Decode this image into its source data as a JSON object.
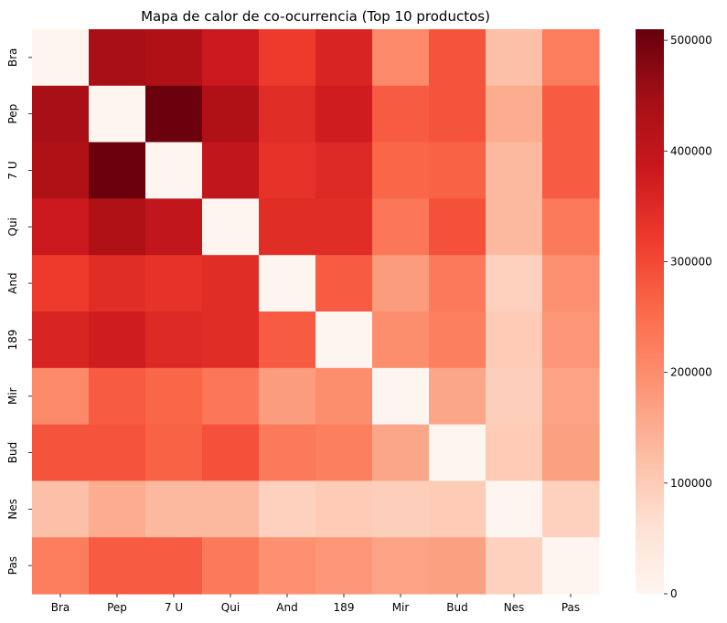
{
  "chart_data": {
    "type": "heatmap",
    "title": "Mapa de calor de co-ocurrencia (Top 10 productos)",
    "xlabel": "",
    "ylabel": "",
    "x_categories": [
      "Bra",
      "Pep",
      "7 U",
      "Qui",
      "And",
      "189",
      "Mir",
      "Bud",
      "Nes",
      "Pas"
    ],
    "y_categories": [
      "Bra",
      "Pep",
      "7 U",
      "Qui",
      "And",
      "189",
      "Mir",
      "Bud",
      "Nes",
      "Pas"
    ],
    "values": [
      [
        0,
        440000,
        430000,
        385000,
        320000,
        360000,
        205000,
        285000,
        120000,
        225000
      ],
      [
        440000,
        0,
        505000,
        430000,
        345000,
        375000,
        275000,
        285000,
        150000,
        275000
      ],
      [
        430000,
        505000,
        0,
        400000,
        335000,
        350000,
        260000,
        265000,
        130000,
        275000
      ],
      [
        385000,
        430000,
        400000,
        0,
        345000,
        345000,
        235000,
        290000,
        130000,
        230000
      ],
      [
        320000,
        345000,
        335000,
        345000,
        0,
        275000,
        175000,
        230000,
        90000,
        195000
      ],
      [
        360000,
        375000,
        350000,
        345000,
        275000,
        0,
        200000,
        220000,
        100000,
        185000
      ],
      [
        205000,
        275000,
        260000,
        235000,
        175000,
        200000,
        0,
        160000,
        95000,
        165000
      ],
      [
        285000,
        285000,
        265000,
        290000,
        230000,
        220000,
        160000,
        0,
        100000,
        170000
      ],
      [
        120000,
        150000,
        130000,
        130000,
        90000,
        100000,
        95000,
        100000,
        0,
        90000
      ],
      [
        225000,
        275000,
        275000,
        230000,
        195000,
        185000,
        165000,
        170000,
        90000,
        0
      ]
    ],
    "colormap": "Reds",
    "color_range": [
      0,
      510000
    ],
    "colorbar_ticks": [
      "0",
      "100000",
      "200000",
      "300000",
      "400000",
      "500000"
    ],
    "colorbar_tick_values": [
      0,
      100000,
      200000,
      300000,
      400000,
      500000
    ]
  }
}
